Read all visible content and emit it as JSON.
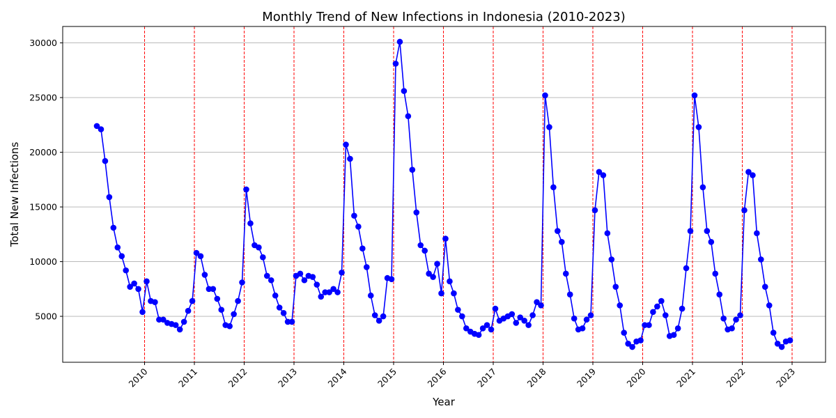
{
  "chart_data": {
    "type": "line",
    "title": "Monthly Trend of New Infections in Indonesia (2010-2023)",
    "xlabel": "Year",
    "ylabel": "Total New Infections",
    "x_start": "2009-01",
    "x_tick_labels": [
      "2010",
      "2011",
      "2012",
      "2013",
      "2014",
      "2015",
      "2016",
      "2017",
      "2018",
      "2019",
      "2020",
      "2021",
      "2022",
      "2023"
    ],
    "y_ticks": [
      5000,
      10000,
      15000,
      20000,
      25000,
      30000
    ],
    "y_tick_labels": [
      "5000",
      "10000",
      "15000",
      "20000",
      "25000",
      "30000"
    ],
    "ylim": [
      800,
      31500
    ],
    "grid": "horizontal",
    "vertical_markers": "dashed red line at each year start",
    "colors": {
      "line": "#0000ff",
      "marker": "#0000ff",
      "vline": "#ff0000",
      "grid": "#b0b0b0"
    },
    "series": [
      {
        "values": [
          22400,
          22100,
          19200,
          15900,
          13100,
          11300,
          10500,
          9200,
          7700,
          8000,
          7500,
          5400,
          8200,
          6400,
          6300,
          4700,
          4700,
          4400,
          4300,
          4200,
          3800,
          4500,
          5500,
          6400,
          10800,
          10500,
          8800,
          7500,
          7500,
          6600,
          5600,
          4200,
          4100,
          5200,
          6400,
          8100,
          16600,
          13500,
          11500,
          11300,
          10400,
          8700,
          8300,
          6900,
          5800,
          5300,
          4500,
          4500,
          8700,
          8900,
          8300,
          8700,
          8600,
          7900,
          6800,
          7200,
          7200,
          7500,
          7200,
          9000,
          20700,
          19400,
          14200,
          13200,
          11200,
          9500,
          6900,
          5100,
          4600,
          5000,
          8500,
          8400,
          28100,
          30100,
          25600,
          23300,
          18400,
          14500,
          11500,
          11000,
          8900,
          8600,
          9800,
          7100,
          12100,
          8200,
          7100,
          5600,
          5000,
          3900,
          3600,
          3400,
          3300,
          3900,
          4200,
          3800,
          5700,
          4600,
          4800,
          5000,
          5200,
          4400,
          4900,
          4600,
          4200,
          5100,
          6300,
          6000,
          25200,
          22300,
          16800,
          12800,
          11800,
          8900,
          7000,
          4800,
          3800,
          3900,
          4700,
          5100,
          14700,
          18200,
          17900,
          12600,
          10200,
          7700,
          6000,
          3500,
          2500,
          2200,
          2700,
          2800,
          4200,
          4200,
          5400,
          5900,
          6400,
          5100,
          3200,
          3300,
          3900,
          5700,
          9400,
          12800,
          25200,
          22300,
          16800,
          12800,
          11800,
          8900,
          7000,
          4800,
          3800,
          3900,
          4700,
          5100,
          14700,
          18200,
          17900,
          12600,
          10200,
          7700,
          6000,
          3500,
          2500,
          2200,
          2700,
          2800
        ]
      }
    ]
  }
}
